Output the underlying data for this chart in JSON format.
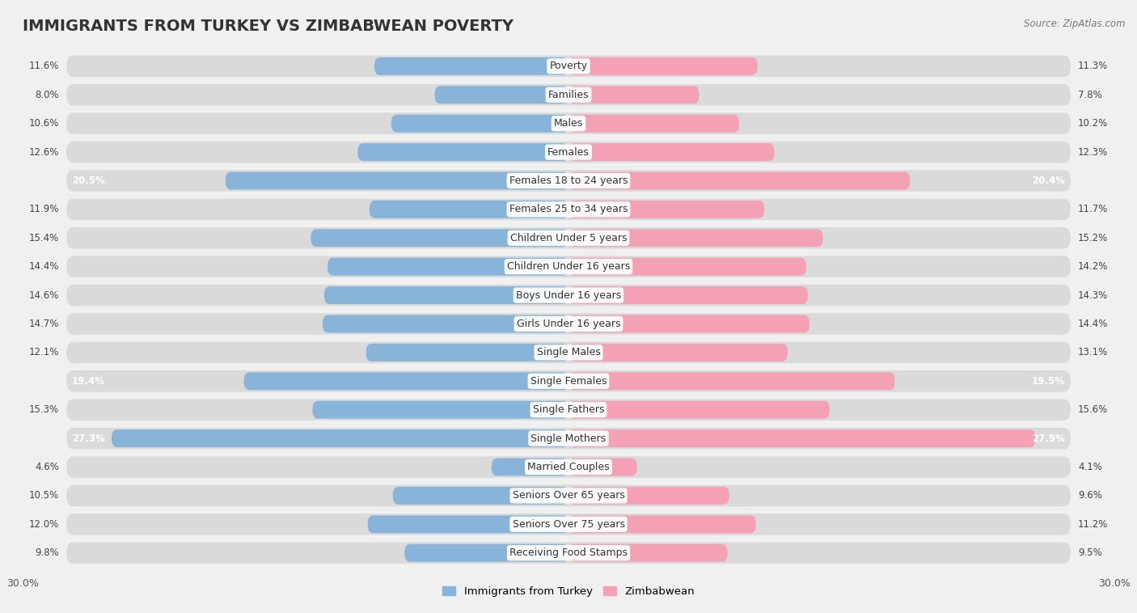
{
  "title": "IMMIGRANTS FROM TURKEY VS ZIMBABWEAN POVERTY",
  "source": "Source: ZipAtlas.com",
  "categories": [
    "Poverty",
    "Families",
    "Males",
    "Females",
    "Females 18 to 24 years",
    "Females 25 to 34 years",
    "Children Under 5 years",
    "Children Under 16 years",
    "Boys Under 16 years",
    "Girls Under 16 years",
    "Single Males",
    "Single Females",
    "Single Fathers",
    "Single Mothers",
    "Married Couples",
    "Seniors Over 65 years",
    "Seniors Over 75 years",
    "Receiving Food Stamps"
  ],
  "turkey_values": [
    11.6,
    8.0,
    10.6,
    12.6,
    20.5,
    11.9,
    15.4,
    14.4,
    14.6,
    14.7,
    12.1,
    19.4,
    15.3,
    27.3,
    4.6,
    10.5,
    12.0,
    9.8
  ],
  "zimbabwe_values": [
    11.3,
    7.8,
    10.2,
    12.3,
    20.4,
    11.7,
    15.2,
    14.2,
    14.3,
    14.4,
    13.1,
    19.5,
    15.6,
    27.9,
    4.1,
    9.6,
    11.2,
    9.5
  ],
  "turkey_color": "#89b4d9",
  "zimbabwe_color": "#f4a0b5",
  "turkey_label": "Immigrants from Turkey",
  "zimbabwe_label": "Zimbabwean",
  "background_color": "#f0f0f0",
  "row_color": "#e2e2e2",
  "row_alt_color": "#ebebeb",
  "pill_color": "#d8d8d8",
  "xlim": 30.0,
  "bar_height": 0.62,
  "label_fontsize": 9.0,
  "value_fontsize": 8.5,
  "title_fontsize": 14
}
